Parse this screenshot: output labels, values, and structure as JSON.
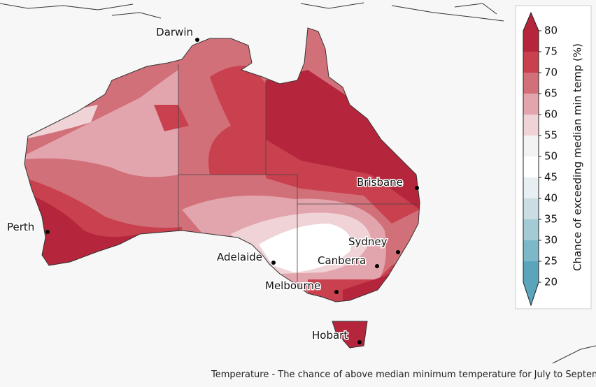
{
  "map": {
    "cities": [
      {
        "name": "Darwin"
      },
      {
        "name": "Perth"
      },
      {
        "name": "Adelaide"
      },
      {
        "name": "Melbourne"
      },
      {
        "name": "Canberra"
      },
      {
        "name": "Sydney"
      },
      {
        "name": "Brisbane"
      },
      {
        "name": "Hobart"
      }
    ],
    "caption": "Temperature - The chance of above median minimum temperature for July to September"
  },
  "legend": {
    "title": "Chance of exceeding median min temp (%)",
    "ticks": [
      20,
      25,
      30,
      35,
      40,
      45,
      50,
      55,
      60,
      65,
      70,
      75,
      80
    ],
    "colors": [
      "#5aa5bb",
      "#7cb8c8",
      "#a4cbd5",
      "#c9dde3",
      "#e8eff2",
      "#ffffff",
      "#f3f3f3",
      "#efd3d6",
      "#e3a5ad",
      "#d2707a",
      "#c9404f",
      "#b5263c"
    ]
  }
}
